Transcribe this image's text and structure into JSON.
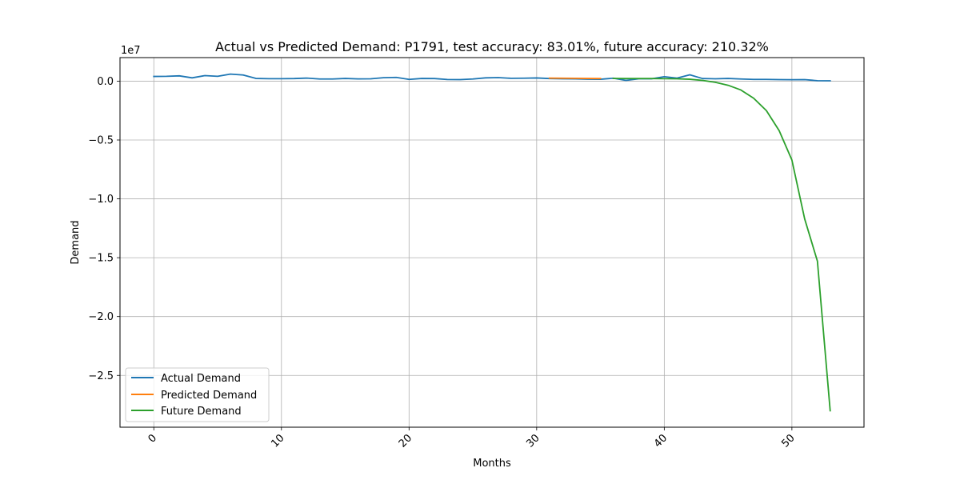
{
  "chart_data": {
    "type": "line",
    "title": "Actual vs Predicted Demand: P1791, test accuracy: 83.01%, future accuracy: 210.32%",
    "xlabel": "Months",
    "ylabel": "Demand",
    "y_offset_label": "1e7",
    "xlim": [
      -2.65,
      55.65
    ],
    "ylim": [
      -29400000.0,
      2000000.0
    ],
    "x_ticks": [
      0,
      10,
      20,
      30,
      40,
      50
    ],
    "x_tick_labels": [
      "0",
      "10",
      "20",
      "30",
      "40",
      "50"
    ],
    "y_ticks": [
      0,
      -5000000,
      -10000000,
      -15000000,
      -20000000,
      -25000000
    ],
    "y_tick_labels": [
      "0.0",
      "−0.5",
      "−1.0",
      "−1.5",
      "−2.0",
      "−2.5"
    ],
    "grid": true,
    "legend_position": "lower-left",
    "series": [
      {
        "name": "Actual Demand",
        "color": "#1f77b4",
        "x": [
          0,
          1,
          2,
          3,
          4,
          5,
          6,
          7,
          8,
          9,
          10,
          11,
          12,
          13,
          14,
          15,
          16,
          17,
          18,
          19,
          20,
          21,
          22,
          23,
          24,
          25,
          26,
          27,
          28,
          29,
          30,
          31,
          32,
          33,
          34,
          35,
          36,
          37,
          38,
          39,
          40,
          41,
          42,
          43,
          44,
          45,
          46,
          47,
          48,
          49,
          50,
          51,
          52,
          53
        ],
        "y": [
          400000,
          410000,
          450000,
          280000,
          470000,
          410000,
          600000,
          520000,
          230000,
          210000,
          210000,
          220000,
          260000,
          180000,
          180000,
          230000,
          190000,
          200000,
          290000,
          320000,
          150000,
          230000,
          220000,
          140000,
          130000,
          180000,
          280000,
          300000,
          240000,
          250000,
          270000,
          220000,
          200000,
          190000,
          170000,
          160000,
          250000,
          60000,
          200000,
          200000,
          380000,
          260000,
          540000,
          220000,
          200000,
          230000,
          180000,
          150000,
          150000,
          130000,
          120000,
          130000,
          40000,
          30000
        ]
      },
      {
        "name": "Predicted Demand",
        "color": "#ff7f0e",
        "x": [
          31,
          32,
          33,
          34,
          35
        ],
        "y": [
          260000,
          250000,
          240000,
          230000,
          220000
        ]
      },
      {
        "name": "Future Demand",
        "color": "#2ca02c",
        "x": [
          36,
          37,
          38,
          39,
          40,
          41,
          42,
          43,
          44,
          45,
          46,
          47,
          48,
          49,
          50,
          51,
          52,
          53
        ],
        "y": [
          230000,
          220000,
          220000,
          220000,
          210000,
          200000,
          160000,
          60000,
          -100000,
          -350000,
          -750000,
          -1450000,
          -2500000,
          -4200000,
          -6700000,
          -11700000,
          -15300000,
          -28000000
        ]
      }
    ]
  }
}
